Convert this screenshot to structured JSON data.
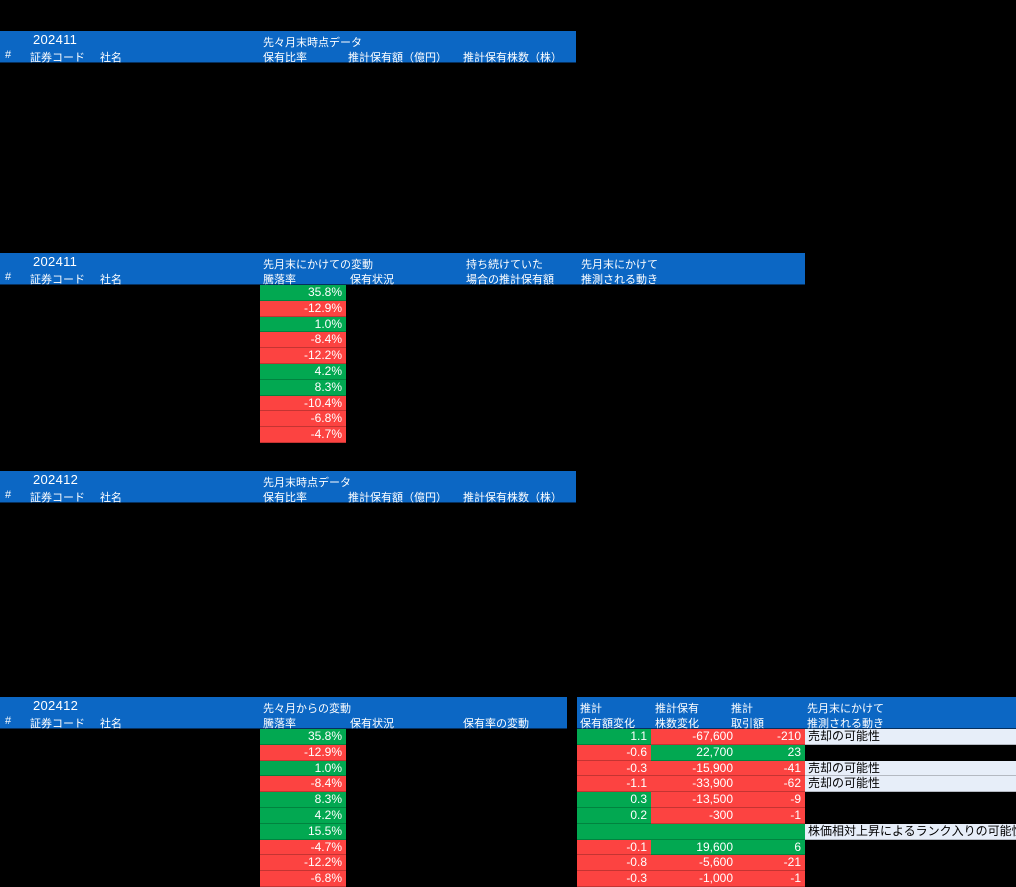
{
  "colors": {
    "header_blue": "#0c67c4",
    "positive_green": "#02a851",
    "negative_red": "#fc4341",
    "note_light_blue": "#e7eef9",
    "background": "#000000",
    "header_text": "#ffffff"
  },
  "section1": {
    "title": "202411",
    "group": "先々月末時点データ",
    "cols": {
      "hash": "#",
      "code": "証券コード",
      "name": "社名",
      "ratio": "保有比率",
      "amount": "推計保有額（億円）",
      "shares": "推計保有株数（株）"
    }
  },
  "section2": {
    "title": "202411",
    "groups": {
      "change": "先月末にかけての変動",
      "kept": "持ち続けていた",
      "last": "先月末にかけて"
    },
    "cols": {
      "hash": "#",
      "code": "証券コード",
      "name": "社名",
      "pct": "騰落率",
      "status": "保有状況",
      "kept2": "場合の推計保有額",
      "move": "推測される動き"
    },
    "rows": [
      {
        "pct": "35.8%",
        "c": "g"
      },
      {
        "pct": "-12.9%",
        "c": "r"
      },
      {
        "pct": "1.0%",
        "c": "g"
      },
      {
        "pct": "-8.4%",
        "c": "r"
      },
      {
        "pct": "-12.2%",
        "c": "r"
      },
      {
        "pct": "4.2%",
        "c": "g"
      },
      {
        "pct": "8.3%",
        "c": "g"
      },
      {
        "pct": "-10.4%",
        "c": "r"
      },
      {
        "pct": "-6.8%",
        "c": "r"
      },
      {
        "pct": "-4.7%",
        "c": "r"
      }
    ]
  },
  "section3": {
    "title": "202412",
    "group": "先月末時点データ",
    "cols": {
      "hash": "#",
      "code": "証券コード",
      "name": "社名",
      "ratio": "保有比率",
      "amount": "推計保有額（億円）",
      "shares": "推計保有株数（株）"
    }
  },
  "section4": {
    "title": "202412",
    "groups": {
      "change": "先々月からの変動",
      "est1": "推計",
      "est2": "推計保有",
      "est3": "推計",
      "last": "先月末にかけて"
    },
    "cols": {
      "hash": "#",
      "code": "証券コード",
      "name": "社名",
      "pct": "騰落率",
      "status": "保有状況",
      "ratio_change": "保有率の変動",
      "amount_change": "保有額変化",
      "share_change": "株数変化",
      "trade": "取引額",
      "move": "推測される動き"
    },
    "rows": [
      {
        "pct": "35.8%",
        "pc": "g",
        "amt": "1.1",
        "ac": "g",
        "sh": "-67,600",
        "sc": "r",
        "tr": "-210",
        "tc": "r",
        "note": "売却の可能性"
      },
      {
        "pct": "-12.9%",
        "pc": "r",
        "amt": "-0.6",
        "ac": "r",
        "sh": "22,700",
        "sc": "g",
        "tr": "23",
        "tc": "g",
        "note": ""
      },
      {
        "pct": "1.0%",
        "pc": "g",
        "amt": "-0.3",
        "ac": "r",
        "sh": "-15,900",
        "sc": "r",
        "tr": "-41",
        "tc": "r",
        "note": "売却の可能性"
      },
      {
        "pct": "-8.4%",
        "pc": "r",
        "amt": "-1.1",
        "ac": "r",
        "sh": "-33,900",
        "sc": "r",
        "tr": "-62",
        "tc": "r",
        "note": "売却の可能性"
      },
      {
        "pct": "8.3%",
        "pc": "g",
        "amt": "0.3",
        "ac": "g",
        "sh": "-13,500",
        "sc": "r",
        "tr": "-9",
        "tc": "r",
        "note": ""
      },
      {
        "pct": "4.2%",
        "pc": "g",
        "amt": "0.2",
        "ac": "g",
        "sh": "-300",
        "sc": "r",
        "tr": "-1",
        "tc": "r",
        "note": ""
      },
      {
        "pct": "15.5%",
        "pc": "g",
        "amt": "",
        "ac": "g",
        "sh": "",
        "sc": "g",
        "tr": "",
        "tc": "g",
        "note": "株価相対上昇によるランク入りの可能性"
      },
      {
        "pct": "-4.7%",
        "pc": "r",
        "amt": "-0.1",
        "ac": "r",
        "sh": "19,600",
        "sc": "g",
        "tr": "6",
        "tc": "g",
        "note": ""
      },
      {
        "pct": "-12.2%",
        "pc": "r",
        "amt": "-0.8",
        "ac": "r",
        "sh": "-5,600",
        "sc": "r",
        "tr": "-21",
        "tc": "r",
        "note": ""
      },
      {
        "pct": "-6.8%",
        "pc": "r",
        "amt": "-0.3",
        "ac": "r",
        "sh": "-1,000",
        "sc": "r",
        "tr": "-1",
        "tc": "r",
        "note": ""
      }
    ]
  }
}
